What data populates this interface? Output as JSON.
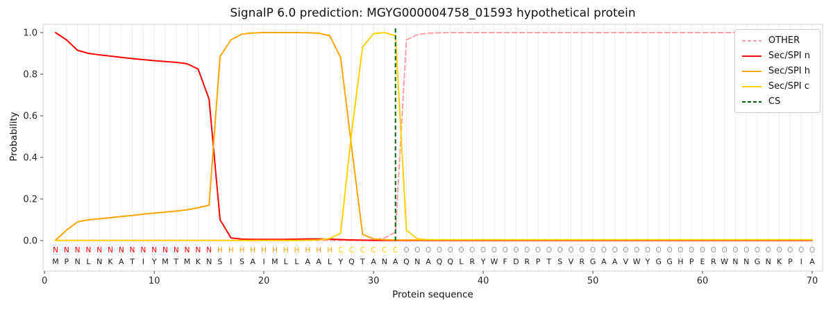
{
  "chart_data": {
    "type": "line",
    "title": "SignalP 6.0 prediction: MGYG000004758_01593 hypothetical protein",
    "xlabel": "Protein sequence",
    "ylabel": "Probability",
    "xticks": [
      0,
      10,
      20,
      30,
      40,
      50,
      60,
      70
    ],
    "yticks": [
      0.0,
      0.2,
      0.4,
      0.6,
      0.8,
      1.0
    ],
    "xlim": [
      0,
      71
    ],
    "ylim": [
      -0.15,
      1.04
    ],
    "grid": "vertical-per-residue",
    "legend_position": "upper right",
    "sequence": "MPNLNKATIYMTMKNSISAIMLLAALYQTANAQNAQQLRYWFDRPTSVRGAAVWYGGHPERWNNGNKPIA",
    "region_labels": "NNNNNNNNNNNNNNNHHHHHHHHHHHCCCCCCOOOOOOOOOOOOOOOOOOOOOOOOOOOOOOOOOOOOOO",
    "label_colors": {
      "N": "#ff0000",
      "H": "#ffa500",
      "C": "#ffd000",
      "O": "#9a9a9a"
    },
    "cs_label": "CS",
    "cs_color": "#006400",
    "cs_position": 32,
    "series": [
      {
        "name": "OTHER",
        "color": "#ff9fa8",
        "dash": true,
        "values": [
          0.001,
          0.001,
          0.001,
          0.001,
          0.001,
          0.001,
          0.001,
          0.001,
          0.001,
          0.001,
          0.001,
          0.001,
          0.001,
          0.001,
          0.001,
          0.001,
          0.001,
          0.001,
          0.001,
          0.001,
          0.001,
          0.001,
          0.001,
          0.001,
          0.001,
          0.001,
          0.001,
          0.001,
          0.002,
          0.004,
          0.012,
          0.04,
          0.965,
          0.99,
          0.997,
          0.999,
          1.0,
          1.0,
          1.0,
          1.0,
          1.0,
          1.0,
          1.0,
          1.0,
          1.0,
          1.0,
          1.0,
          1.0,
          1.0,
          1.0,
          1.0,
          1.0,
          1.0,
          1.0,
          1.0,
          1.0,
          1.0,
          1.0,
          1.0,
          1.0,
          1.0,
          1.0,
          1.0,
          1.0,
          1.0,
          1.0,
          1.0,
          1.0,
          1.0,
          1.0
        ]
      },
      {
        "name": "Sec/SPI n",
        "color": "#ff0000",
        "dash": false,
        "values": [
          1.0,
          0.965,
          0.915,
          0.9,
          0.893,
          0.887,
          0.881,
          0.875,
          0.87,
          0.865,
          0.861,
          0.857,
          0.85,
          0.825,
          0.68,
          0.1,
          0.013,
          0.007,
          0.006,
          0.006,
          0.006,
          0.006,
          0.007,
          0.008,
          0.008,
          0.007,
          0.005,
          0.003,
          0.002,
          0.001,
          0.001,
          0.001,
          0.001,
          0.001,
          0.001,
          0.001,
          0.001,
          0.001,
          0.001,
          0.001,
          0.001,
          0.001,
          0.001,
          0.001,
          0.001,
          0.001,
          0.001,
          0.001,
          0.001,
          0.001,
          0.001,
          0.001,
          0.001,
          0.001,
          0.001,
          0.001,
          0.001,
          0.001,
          0.001,
          0.001,
          0.001,
          0.001,
          0.001,
          0.001,
          0.001,
          0.001,
          0.001,
          0.001,
          0.001,
          0.001
        ]
      },
      {
        "name": "Sec/SPI h",
        "color": "#ffa500",
        "dash": false,
        "values": [
          0.002,
          0.05,
          0.09,
          0.1,
          0.105,
          0.11,
          0.116,
          0.121,
          0.127,
          0.132,
          0.137,
          0.142,
          0.148,
          0.158,
          0.17,
          0.885,
          0.965,
          0.993,
          0.998,
          1.0,
          1.0,
          1.0,
          1.0,
          0.999,
          0.997,
          0.985,
          0.88,
          0.45,
          0.03,
          0.008,
          0.004,
          0.003,
          0.003,
          0.003,
          0.003,
          0.003,
          0.003,
          0.003,
          0.003,
          0.003,
          0.003,
          0.003,
          0.003,
          0.003,
          0.003,
          0.003,
          0.003,
          0.003,
          0.003,
          0.003,
          0.003,
          0.003,
          0.003,
          0.003,
          0.003,
          0.003,
          0.003,
          0.003,
          0.003,
          0.003,
          0.003,
          0.003,
          0.003,
          0.003,
          0.003,
          0.003,
          0.003,
          0.003,
          0.003,
          0.003
        ]
      },
      {
        "name": "Sec/SPI c",
        "color": "#ffd000",
        "dash": false,
        "values": [
          0.001,
          0.001,
          0.001,
          0.001,
          0.001,
          0.001,
          0.001,
          0.001,
          0.001,
          0.001,
          0.001,
          0.001,
          0.001,
          0.001,
          0.001,
          0.001,
          0.001,
          0.001,
          0.001,
          0.001,
          0.001,
          0.001,
          0.001,
          0.002,
          0.003,
          0.01,
          0.035,
          0.52,
          0.93,
          0.995,
          1.0,
          0.985,
          0.05,
          0.008,
          0.004,
          0.004,
          0.004,
          0.004,
          0.004,
          0.004,
          0.004,
          0.004,
          0.004,
          0.004,
          0.004,
          0.004,
          0.004,
          0.004,
          0.004,
          0.004,
          0.004,
          0.004,
          0.004,
          0.004,
          0.004,
          0.004,
          0.004,
          0.004,
          0.004,
          0.004,
          0.004,
          0.004,
          0.004,
          0.004,
          0.004,
          0.004,
          0.004,
          0.004,
          0.004,
          0.004
        ]
      }
    ]
  }
}
